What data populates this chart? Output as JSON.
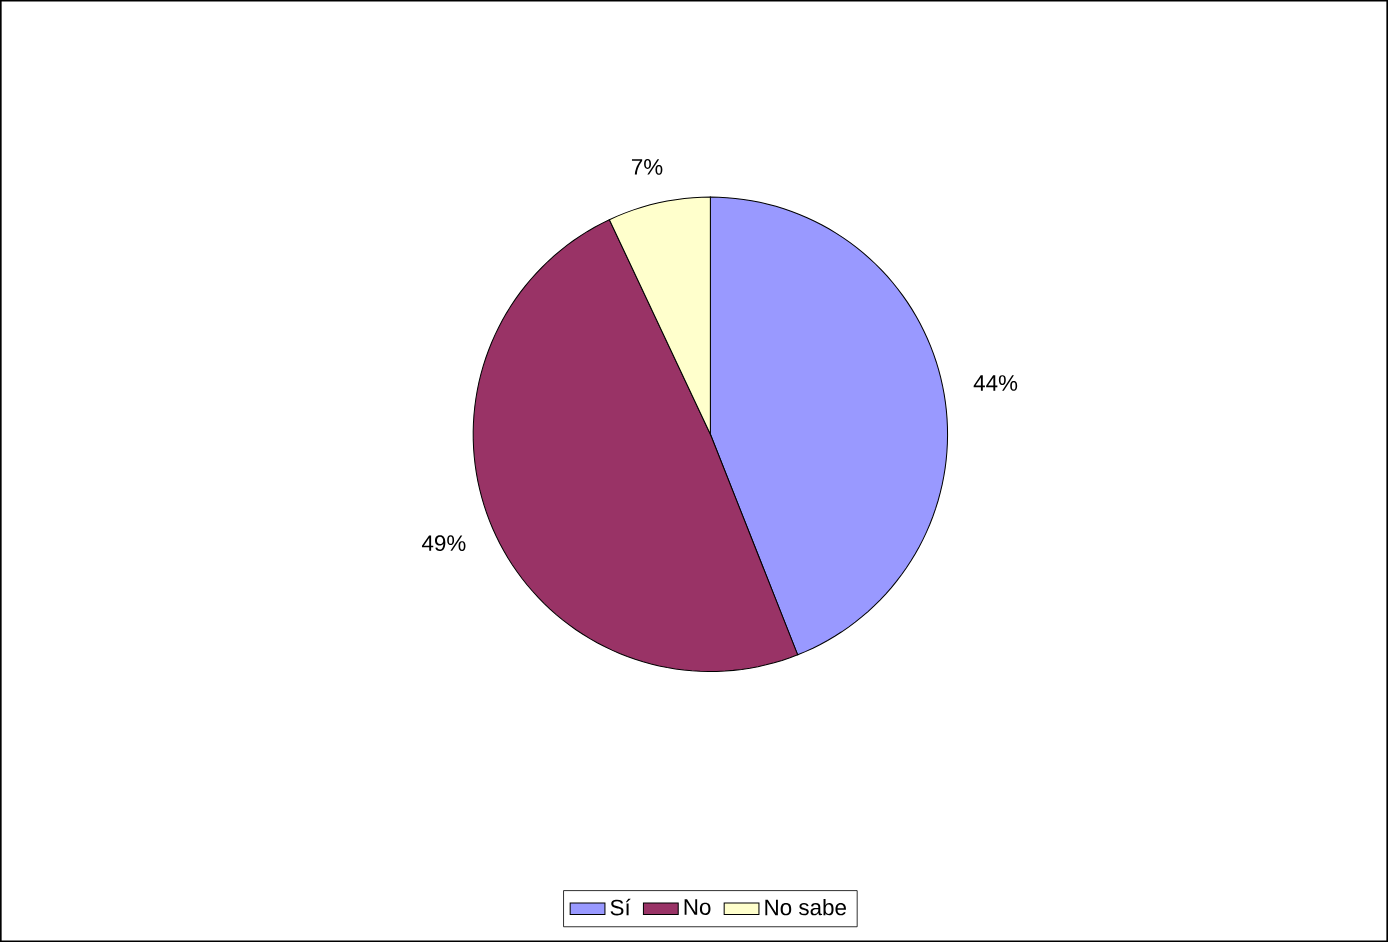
{
  "chart_data": {
    "type": "pie",
    "categories": [
      "Sí",
      "No",
      "No sabe"
    ],
    "values": [
      44,
      49,
      7
    ],
    "colors": [
      "#9999ff",
      "#993366",
      "#ffffcc"
    ],
    "value_labels": [
      "44%",
      "49%",
      "7%"
    ],
    "legend": "bottom"
  }
}
